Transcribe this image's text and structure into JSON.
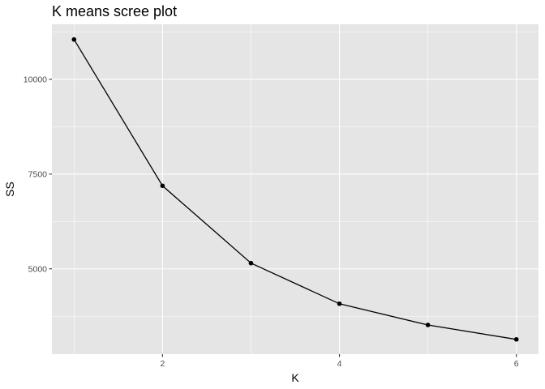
{
  "chart_data": {
    "type": "line",
    "title": "K means scree plot",
    "xlabel": "K",
    "ylabel": "SS",
    "x": [
      1,
      2,
      3,
      4,
      5,
      6
    ],
    "series": [
      {
        "values": [
          11050,
          7190,
          5150,
          4080,
          3520,
          3140
        ]
      }
    ],
    "xticks": [
      2,
      4,
      6
    ],
    "yticks": [
      5000,
      7500,
      10000
    ],
    "ytick_labels": [
      "5000",
      "7500",
      "10000"
    ],
    "xlim": [
      0.75,
      6.25
    ],
    "ylim": [
      2750,
      11450
    ],
    "grid": true,
    "markers": true,
    "colors": {
      "panel": "#e5e5e5",
      "grid_major": "#ffffff",
      "line": "#000000"
    }
  }
}
